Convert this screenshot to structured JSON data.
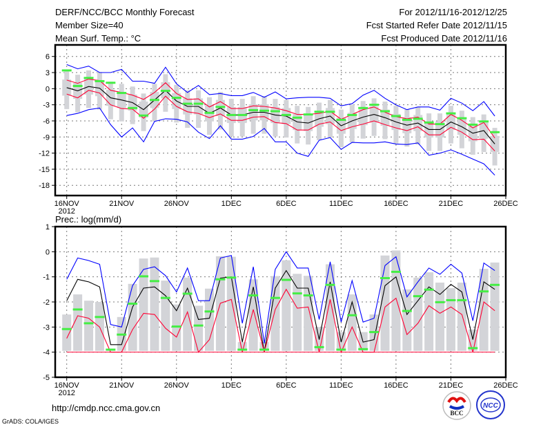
{
  "header": {
    "title": "DERF/NCC/BCC Monthly Forecast",
    "member_size": "Member Size=40",
    "variable": "Mean Surf. Temp.: °C",
    "period": "For 2012/11/16-2012/12/25",
    "started": "Fcst Started Refer Date 2012/11/15",
    "produced": "Fcst Produced Date 2012/11/16"
  },
  "footer": {
    "url": "http://cmdp.ncc.cma.gov.cn",
    "grads": "GrADS: COLA/IGES",
    "logo_bcc": "BCC",
    "logo_ncc": "NCC"
  },
  "colors": {
    "max_min": "#0000ff",
    "mean": "#000000",
    "spread": "#ff0033",
    "obs": "#44ee44",
    "box": "#d3d4d8",
    "grid": "#777777"
  },
  "chart_data": [
    {
      "type": "line",
      "title": "Mean Surf. Temp.: °C",
      "ylim": [
        -19.9,
        8.15
      ],
      "yticks": [
        "6",
        "3",
        "0",
        "-3",
        "-6",
        "-9",
        "-12",
        "-15",
        "-18"
      ],
      "ytick_values": [
        6,
        3,
        0,
        -3,
        -6,
        -9,
        -12,
        -15,
        -18
      ],
      "xticks": [
        "16NOV",
        "21NOV",
        "26NOV",
        "1DEC",
        "6DEC",
        "11DEC",
        "16DEC",
        "21DEC",
        "26DEC"
      ],
      "xtick_year": "2012",
      "grid": true,
      "days": 40,
      "series": [
        {
          "name": "max",
          "color": "#0000ff",
          "values": [
            4.5,
            3.7,
            4.2,
            3.0,
            3.0,
            3.6,
            1.4,
            1.4,
            1.0,
            4.0,
            0.9,
            -0.7,
            0.6,
            -1.1,
            -0.9,
            -1.3,
            -1.3,
            -0.7,
            -1.6,
            -0.6,
            -1.9,
            -1.7,
            -1.6,
            -1.6,
            -1.8,
            -3.2,
            -2.8,
            -1.2,
            -0.3,
            -1.8,
            -3.0,
            -3.9,
            -3.4,
            -3.4,
            -4.0,
            -1.8,
            -2.7,
            -4.1,
            -2.4,
            -5.1
          ]
        },
        {
          "name": "min",
          "color": "#0000ff",
          "values": [
            -5.0,
            -4.6,
            -3.9,
            -3.6,
            -6.7,
            -9.0,
            -7.3,
            -9.9,
            -6.1,
            -5.6,
            -5.7,
            -6.2,
            -8.1,
            -9.3,
            -6.9,
            -9.4,
            -9.4,
            -8.9,
            -7.4,
            -9.9,
            -9.9,
            -12.0,
            -12.6,
            -9.6,
            -9.1,
            -11.3,
            -10.0,
            -10.1,
            -10.1,
            -9.9,
            -10.3,
            -10.4,
            -10.1,
            -12.4,
            -12.0,
            -11.4,
            -12.2,
            -13.1,
            -14.0,
            -16.1
          ]
        },
        {
          "name": "upper",
          "color": "#ff0033",
          "values": [
            1.6,
            1.0,
            1.8,
            1.5,
            -0.3,
            -0.7,
            -1.2,
            -2.0,
            -0.7,
            1.1,
            -0.9,
            -2.0,
            -1.9,
            -3.4,
            -2.4,
            -3.7,
            -3.7,
            -3.2,
            -3.3,
            -3.6,
            -4.1,
            -4.8,
            -4.8,
            -4.6,
            -4.2,
            -5.7,
            -4.8,
            -3.9,
            -3.4,
            -4.4,
            -5.2,
            -5.6,
            -5.3,
            -6.6,
            -6.6,
            -4.8,
            -5.9,
            -7.3,
            -6.3,
            -9.2
          ]
        },
        {
          "name": "lower",
          "color": "#ff0033",
          "values": [
            -1.0,
            -1.7,
            -0.3,
            -0.8,
            -3.0,
            -3.7,
            -3.8,
            -5.5,
            -3.8,
            -1.4,
            -3.3,
            -4.3,
            -4.6,
            -5.4,
            -4.7,
            -5.9,
            -5.9,
            -5.3,
            -5.2,
            -6.3,
            -6.5,
            -7.7,
            -7.7,
            -6.6,
            -6.2,
            -7.8,
            -7.1,
            -6.6,
            -6.0,
            -6.7,
            -7.3,
            -7.8,
            -7.1,
            -8.6,
            -8.6,
            -7.2,
            -8.1,
            -9.5,
            -9.4,
            -11.6
          ]
        },
        {
          "name": "mean",
          "color": "#000000",
          "values": [
            0.2,
            -0.4,
            0.4,
            0.1,
            -1.7,
            -2.1,
            -2.6,
            -3.9,
            -2.1,
            -0.3,
            -2.3,
            -3.3,
            -3.3,
            -4.6,
            -3.6,
            -4.9,
            -4.9,
            -4.4,
            -4.4,
            -4.9,
            -5.1,
            -6.2,
            -6.4,
            -5.6,
            -5.1,
            -6.9,
            -6.0,
            -5.3,
            -4.8,
            -5.4,
            -6.2,
            -6.8,
            -6.4,
            -7.6,
            -7.6,
            -6.2,
            -7.1,
            -8.3,
            -7.8,
            -10.3
          ]
        }
      ],
      "obs": [
        3.4,
        0.5,
        2.0,
        1.4,
        1.1,
        -0.8,
        -3.6,
        -5.0,
        -2.1,
        -0.4,
        -1.7,
        -2.8,
        -2.8,
        -4.5,
        -3.4,
        -4.9,
        -4.9,
        -4.0,
        -4.1,
        -4.2,
        -4.9,
        -5.4,
        -4.8,
        -4.3,
        -4.3,
        -5.8,
        -4.9,
        -3.6,
        -3.0,
        -4.2,
        -5.1,
        -5.8,
        -5.6,
        -6.3,
        -6.6,
        -4.6,
        -5.5,
        -6.7,
        -6.1,
        -8.1
      ],
      "box_outer_high": [
        3.2,
        2.6,
        3.4,
        3.1,
        1.3,
        0.9,
        0.4,
        -0.9,
        0.9,
        2.7,
        0.7,
        -0.3,
        -0.3,
        -1.6,
        -0.6,
        -1.9,
        -1.9,
        -1.4,
        -1.4,
        -1.9,
        -2.1,
        -3.2,
        -3.4,
        -2.6,
        -2.1,
        -3.9,
        -3.0,
        -2.3,
        -1.8,
        -2.4,
        -3.2,
        -3.8,
        -3.4,
        -4.6,
        -4.6,
        -3.2,
        -4.1,
        -5.3,
        -4.8,
        -7.3
      ],
      "box_outer_low": [
        -3.8,
        -4.4,
        -3.6,
        -3.9,
        -5.7,
        -6.1,
        -6.6,
        -7.9,
        -6.1,
        -4.3,
        -6.3,
        -7.3,
        -7.3,
        -8.6,
        -7.6,
        -8.9,
        -8.9,
        -8.4,
        -8.4,
        -8.9,
        -9.1,
        -10.2,
        -10.4,
        -9.6,
        -9.1,
        -10.9,
        -10.0,
        -9.3,
        -8.8,
        -9.4,
        -10.2,
        -10.8,
        -10.4,
        -11.6,
        -11.6,
        -10.2,
        -11.1,
        -12.3,
        -11.8,
        -14.3
      ],
      "box_inner_high": [
        1.7,
        1.1,
        1.9,
        1.6,
        -0.2,
        -0.6,
        -1.1,
        -2.4,
        -0.6,
        1.2,
        -0.8,
        -1.8,
        -1.8,
        -3.1,
        -2.1,
        -3.4,
        -3.4,
        -2.9,
        -2.9,
        -3.4,
        -3.6,
        -4.7,
        -4.9,
        -4.1,
        -3.6,
        -5.4,
        -4.5,
        -3.8,
        -3.3,
        -3.9,
        -4.7,
        -5.3,
        -4.9,
        -6.1,
        -6.1,
        -4.7,
        -5.6,
        -6.8,
        -6.3,
        -8.8
      ],
      "box_inner_low": [
        -1.3,
        -1.9,
        -1.1,
        -1.4,
        -3.2,
        -3.6,
        -4.1,
        -5.4,
        -3.6,
        -1.8,
        -3.8,
        -4.8,
        -4.8,
        -6.1,
        -5.1,
        -6.4,
        -6.4,
        -5.9,
        -5.9,
        -6.4,
        -6.6,
        -7.7,
        -7.9,
        -7.1,
        -6.6,
        -8.4,
        -7.5,
        -6.8,
        -6.3,
        -6.9,
        -7.7,
        -8.3,
        -7.9,
        -9.1,
        -9.1,
        -7.7,
        -8.6,
        -9.8,
        -9.3,
        -11.8
      ]
    },
    {
      "type": "line",
      "title": "Prec.: log(mm/d)",
      "ylim": [
        -5,
        1
      ],
      "yticks": [
        "1",
        "0",
        "-1",
        "-2",
        "-3",
        "-4",
        "-5"
      ],
      "ytick_values": [
        1,
        0,
        -1,
        -2,
        -3,
        -4,
        -5
      ],
      "xticks": [
        "16NOV",
        "21NOV",
        "26NOV",
        "1DEC",
        "6DEC",
        "11DEC",
        "16DEC",
        "21DEC",
        "26DEC"
      ],
      "xtick_year": "2012",
      "grid": true,
      "days": 40,
      "baseline": -4,
      "bar_base": -3.95,
      "series": [
        {
          "name": "max",
          "color": "#0000ff",
          "values": [
            -1.1,
            -0.25,
            -0.35,
            -0.5,
            -2.9,
            -3.0,
            -1.35,
            -0.7,
            -0.6,
            -0.95,
            -1.6,
            -0.65,
            -1.95,
            -1.95,
            -0.25,
            -0.15,
            -2.85,
            -0.6,
            -3.65,
            -0.7,
            0.0,
            -0.65,
            -0.65,
            -2.7,
            -0.4,
            -2.8,
            -1.15,
            -2.8,
            -2.65,
            -0.55,
            -0.2,
            -1.8,
            -1.2,
            -0.65,
            -0.9,
            -0.5,
            -0.85,
            -2.75,
            -0.45,
            -0.75
          ]
        },
        {
          "name": "mean",
          "color": "#000000",
          "values": [
            -1.95,
            -1.1,
            -1.2,
            -1.4,
            -3.7,
            -3.7,
            -2.2,
            -1.45,
            -1.4,
            -1.75,
            -2.35,
            -1.45,
            -2.7,
            -2.65,
            -1.05,
            -1.0,
            -3.6,
            -1.4,
            -4.0,
            -1.45,
            -0.75,
            -1.45,
            -1.45,
            -3.5,
            -1.2,
            -3.6,
            -2.0,
            -3.6,
            -3.5,
            -1.35,
            -1.0,
            -2.5,
            -1.95,
            -1.4,
            -1.7,
            -1.3,
            -1.6,
            -3.5,
            -1.2,
            -1.5
          ]
        },
        {
          "name": "lower",
          "color": "#ff0033",
          "values": [
            -3.45,
            -2.55,
            -2.65,
            -3.0,
            -4.0,
            -4.0,
            -3.1,
            -2.45,
            -2.5,
            -3.05,
            -3.4,
            -2.4,
            -4.0,
            -3.5,
            -2.05,
            -1.9,
            -4.0,
            -2.3,
            -4.0,
            -2.3,
            -1.5,
            -2.25,
            -2.2,
            -4.0,
            -1.9,
            -4.0,
            -3.0,
            -4.0,
            -4.0,
            -2.2,
            -1.85,
            -3.3,
            -2.85,
            -2.15,
            -2.45,
            -2.2,
            -2.5,
            -4.0,
            -2.0,
            -2.35
          ]
        }
      ],
      "obs": [
        -3.08,
        -2.3,
        -2.85,
        -2.6,
        -3.9,
        -3.3,
        -2.07,
        -0.98,
        -1.17,
        -1.84,
        -2.98,
        -1.67,
        -2.94,
        -2.38,
        -1.1,
        -1.03,
        -3.9,
        -1.74,
        -3.9,
        -1.84,
        -1.12,
        -1.66,
        -1.74,
        -3.8,
        -1.32,
        -3.9,
        -2.53,
        -3.88,
        -3.2,
        -1.05,
        -0.8,
        -2.36,
        -1.77,
        -1.51,
        -2.01,
        -1.93,
        -1.93,
        -3.84,
        -1.58,
        -1.32
      ],
      "bar_top": [
        -2.5,
        -1.7,
        -1.95,
        -2.0,
        -3.9,
        -2.6,
        -1.28,
        -0.27,
        -0.23,
        -1.15,
        -2.1,
        -1.03,
        -2.15,
        -1.47,
        -0.18,
        -0.2,
        -3.6,
        -1.1,
        -3.6,
        -0.97,
        -0.34,
        -0.88,
        -0.96,
        -3.0,
        -0.5,
        -3.2,
        -1.7,
        -3.2,
        -2.5,
        -0.15,
        0.05,
        -1.5,
        -1.03,
        -0.82,
        -1.23,
        -1.45,
        -1.23,
        -3.1,
        -0.68,
        -0.43
      ]
    }
  ]
}
